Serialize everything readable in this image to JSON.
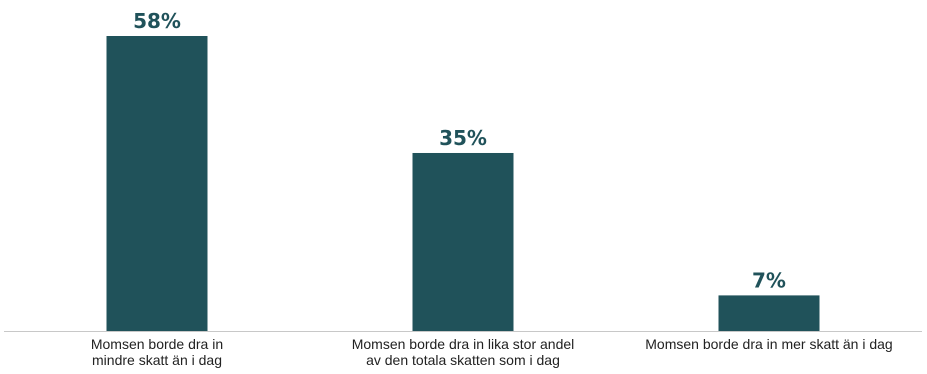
{
  "colors": {
    "bar": "#20525a",
    "label": "#20525a",
    "axis": "#c8c8c8",
    "text": "#222222"
  },
  "chart_data": {
    "type": "bar",
    "categories": [
      [
        "Momsen borde dra in",
        "mindre skatt än i dag"
      ],
      [
        "Momsen borde dra in lika stor andel",
        "av den totala skatten som i dag"
      ],
      [
        "Momsen borde dra in mer skatt än i dag"
      ]
    ],
    "values": [
      58,
      35,
      7
    ],
    "value_labels": [
      "58%",
      "35%",
      "7%"
    ],
    "unit": "%",
    "ylim": [
      0,
      58
    ],
    "grid": false,
    "legend": "none"
  }
}
